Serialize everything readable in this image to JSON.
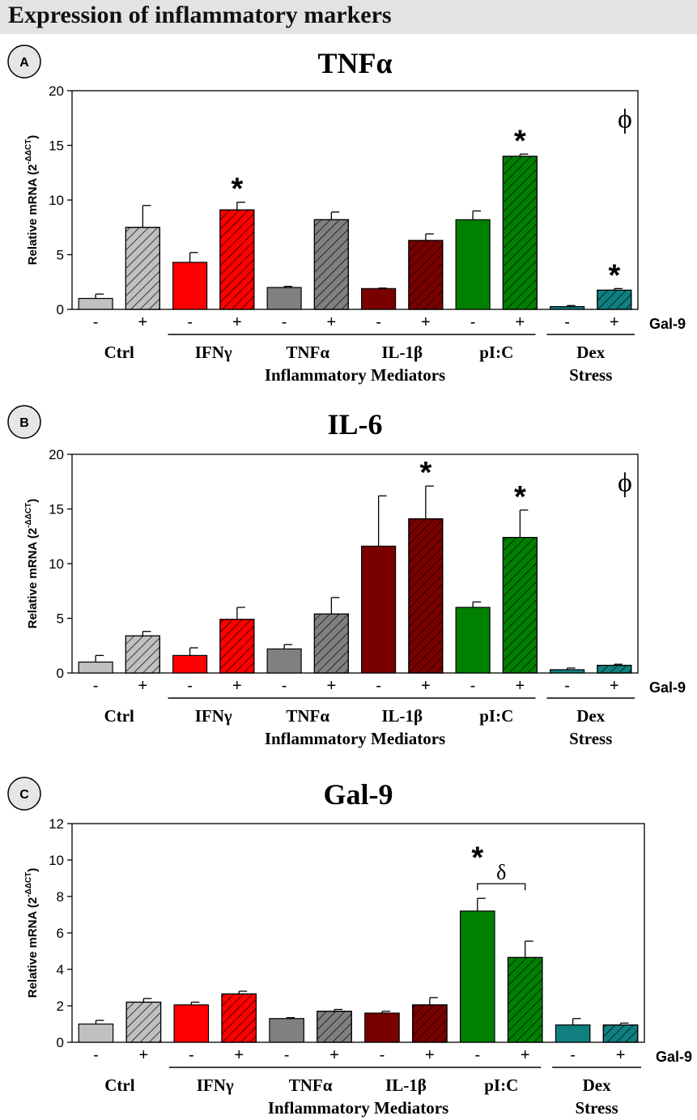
{
  "page_title": "Expression of inflammatory markers",
  "group_names": [
    "Ctrl",
    "IFNγ",
    "TNFα",
    "IL-1β",
    "pI:C"
  ],
  "dex_label": [
    "Dex",
    "Stress"
  ],
  "mediators_label": "Inflammatory Mediators",
  "minus_label": "-",
  "plus_label": "+",
  "gal9_label": "Gal-9",
  "ylabel_main": "Relative mRNA (2",
  "ylabel_sup": "-ΔΔCT",
  "ylabel_end": ")",
  "star_symbol": "*",
  "phi_symbol": "ϕ",
  "delta_symbol": "δ",
  "colors": {
    "ctrl": "#c0c0c0",
    "ifng": "#ff0000",
    "tnfa": "#808080",
    "il1b": "#7a0000",
    "pic": "#008000",
    "dex": "#0f7f80",
    "header_bg": "#e3e3e3"
  },
  "chart_data": [
    {
      "panel": "A",
      "type": "bar",
      "title": "TNFα",
      "ylabel": "Relative mRNA (2-ΔΔCT)",
      "ylim": [
        0,
        20
      ],
      "yticks": [
        0,
        5,
        10,
        15,
        20
      ],
      "categories": [
        "Ctrl -",
        "Ctrl +",
        "IFNγ -",
        "IFNγ +",
        "TNFα -",
        "TNFα +",
        "IL-1β -",
        "IL-1β +",
        "pI:C -",
        "pI:C +",
        "Dex Stress -",
        "Dex Stress +"
      ],
      "values": [
        1.0,
        7.5,
        4.3,
        9.1,
        2.0,
        8.2,
        1.9,
        6.3,
        8.2,
        14.0,
        0.25,
        1.75
      ],
      "errors": [
        0.4,
        2.0,
        0.9,
        0.7,
        0.1,
        0.7,
        0.05,
        0.6,
        0.8,
        0.2,
        0.1,
        0.15
      ],
      "stars": [
        3,
        9,
        11
      ],
      "phi": true,
      "bracket": null
    },
    {
      "panel": "B",
      "type": "bar",
      "title": "IL-6",
      "ylabel": "Relative mRNA (2-ΔΔCT)",
      "ylim": [
        0,
        20
      ],
      "yticks": [
        0,
        5,
        10,
        15,
        20
      ],
      "categories": [
        "Ctrl -",
        "Ctrl +",
        "IFNγ -",
        "IFNγ +",
        "TNFα -",
        "TNFα +",
        "IL-1β -",
        "IL-1β +",
        "pI:C -",
        "pI:C +",
        "Dex Stress -",
        "Dex Stress +"
      ],
      "values": [
        1.0,
        3.4,
        1.6,
        4.9,
        2.2,
        5.4,
        11.6,
        14.1,
        6.0,
        12.4,
        0.3,
        0.7
      ],
      "errors": [
        0.6,
        0.4,
        0.7,
        1.1,
        0.4,
        1.5,
        4.6,
        3.0,
        0.5,
        2.5,
        0.15,
        0.1
      ],
      "stars": [
        7,
        9
      ],
      "phi": true,
      "bracket": null
    },
    {
      "panel": "C",
      "type": "bar",
      "title": "Gal-9",
      "ylabel": "Relative mRNA (2-ΔΔCT)",
      "ylim": [
        0,
        12
      ],
      "yticks": [
        0,
        2,
        4,
        6,
        8,
        10,
        12
      ],
      "categories": [
        "Ctrl -",
        "Ctrl +",
        "IFNγ -",
        "IFNγ +",
        "TNFα -",
        "TNFα +",
        "IL-1β -",
        "IL-1β +",
        "pI:C -",
        "pI:C +",
        "Dex Stress -",
        "Dex Stress +"
      ],
      "values": [
        1.0,
        2.2,
        2.05,
        2.65,
        1.3,
        1.7,
        1.6,
        2.05,
        7.2,
        4.65,
        0.95,
        0.95
      ],
      "errors": [
        0.2,
        0.2,
        0.15,
        0.15,
        0.05,
        0.1,
        0.1,
        0.4,
        0.7,
        0.9,
        0.35,
        0.1
      ],
      "stars": [
        8
      ],
      "phi": false,
      "bracket": [
        8,
        9
      ]
    }
  ]
}
